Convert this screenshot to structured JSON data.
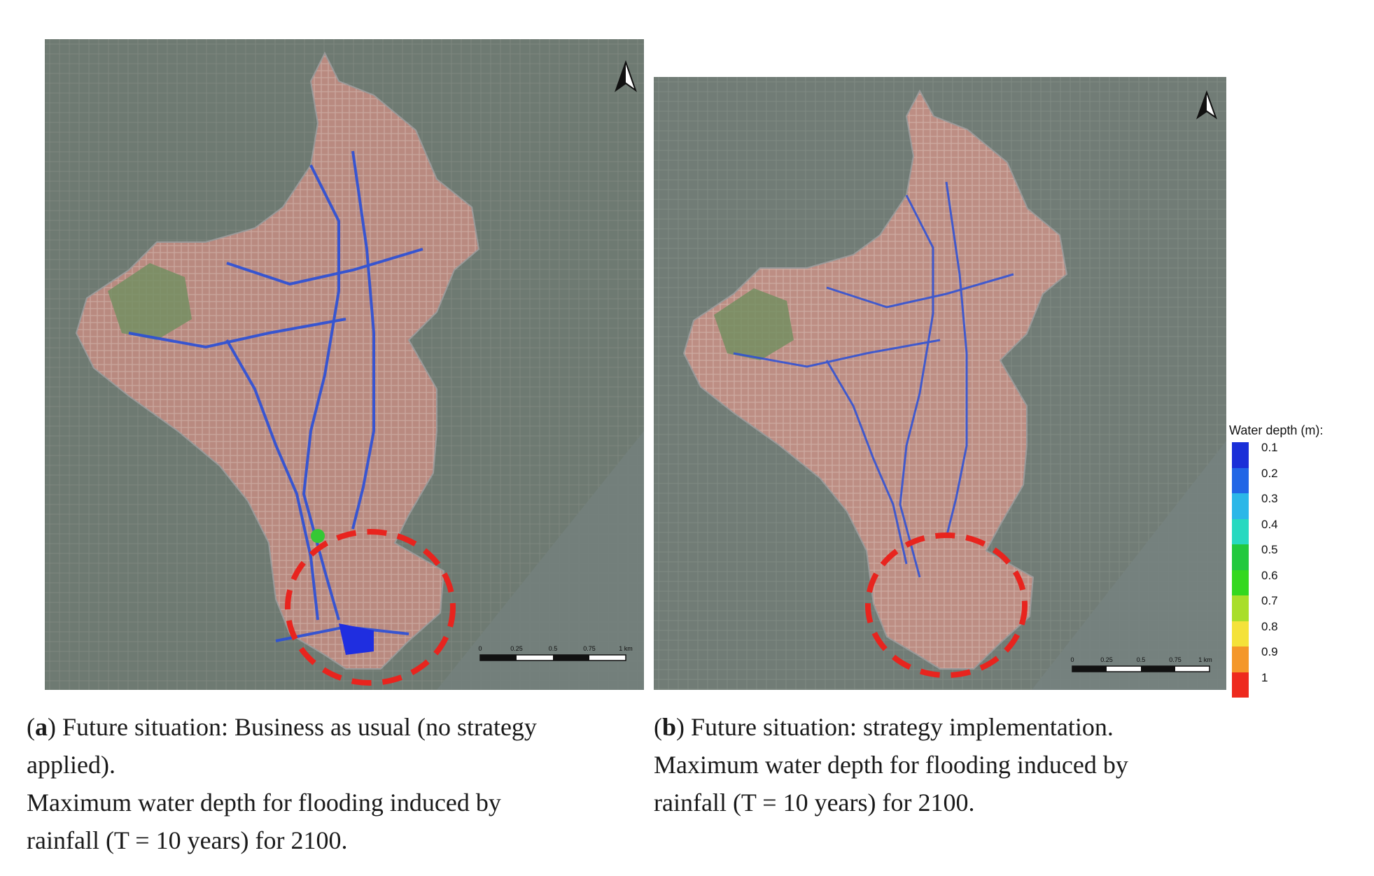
{
  "panels": [
    {
      "id": "a",
      "label": "a",
      "caption_rest_line1": ") Future situation: Business as usual (no strategy",
      "caption_line2": "applied).",
      "caption_line3": "Maximum water depth for flooding induced by",
      "caption_line4": "rainfall (T = 10 years) for 2100.",
      "scale": {
        "ticks": [
          "0",
          "0.25",
          "0.5",
          "0.75",
          "1 km"
        ]
      },
      "highlight_circle_color": "#e8241e"
    },
    {
      "id": "b",
      "label": "b",
      "caption_rest_line1": ") Future situation: strategy implementation.",
      "caption_line2": "Maximum water depth for flooding induced by",
      "caption_line3": "rainfall (T = 10 years) for 2100.",
      "scale": {
        "ticks": [
          "0",
          "0.25",
          "0.5",
          "0.75",
          "1 km"
        ]
      },
      "highlight_circle_color": "#e8241e"
    }
  ],
  "legend": {
    "title": "Water depth (m):",
    "items": [
      {
        "label": "0.1",
        "color": "#1a2fd8"
      },
      {
        "label": "0.2",
        "color": "#2166e6"
      },
      {
        "label": "0.3",
        "color": "#2bb7e8"
      },
      {
        "label": "0.4",
        "color": "#27d9c0"
      },
      {
        "label": "0.5",
        "color": "#22c93e"
      },
      {
        "label": "0.6",
        "color": "#34d81f"
      },
      {
        "label": "0.7",
        "color": "#a9de2a"
      },
      {
        "label": "0.8",
        "color": "#f4e23a"
      },
      {
        "label": "0.9",
        "color": "#f4972a"
      },
      {
        "label": "1",
        "color": "#ee2a1e"
      }
    ]
  },
  "north_arrow_icon": "north-arrow-icon"
}
